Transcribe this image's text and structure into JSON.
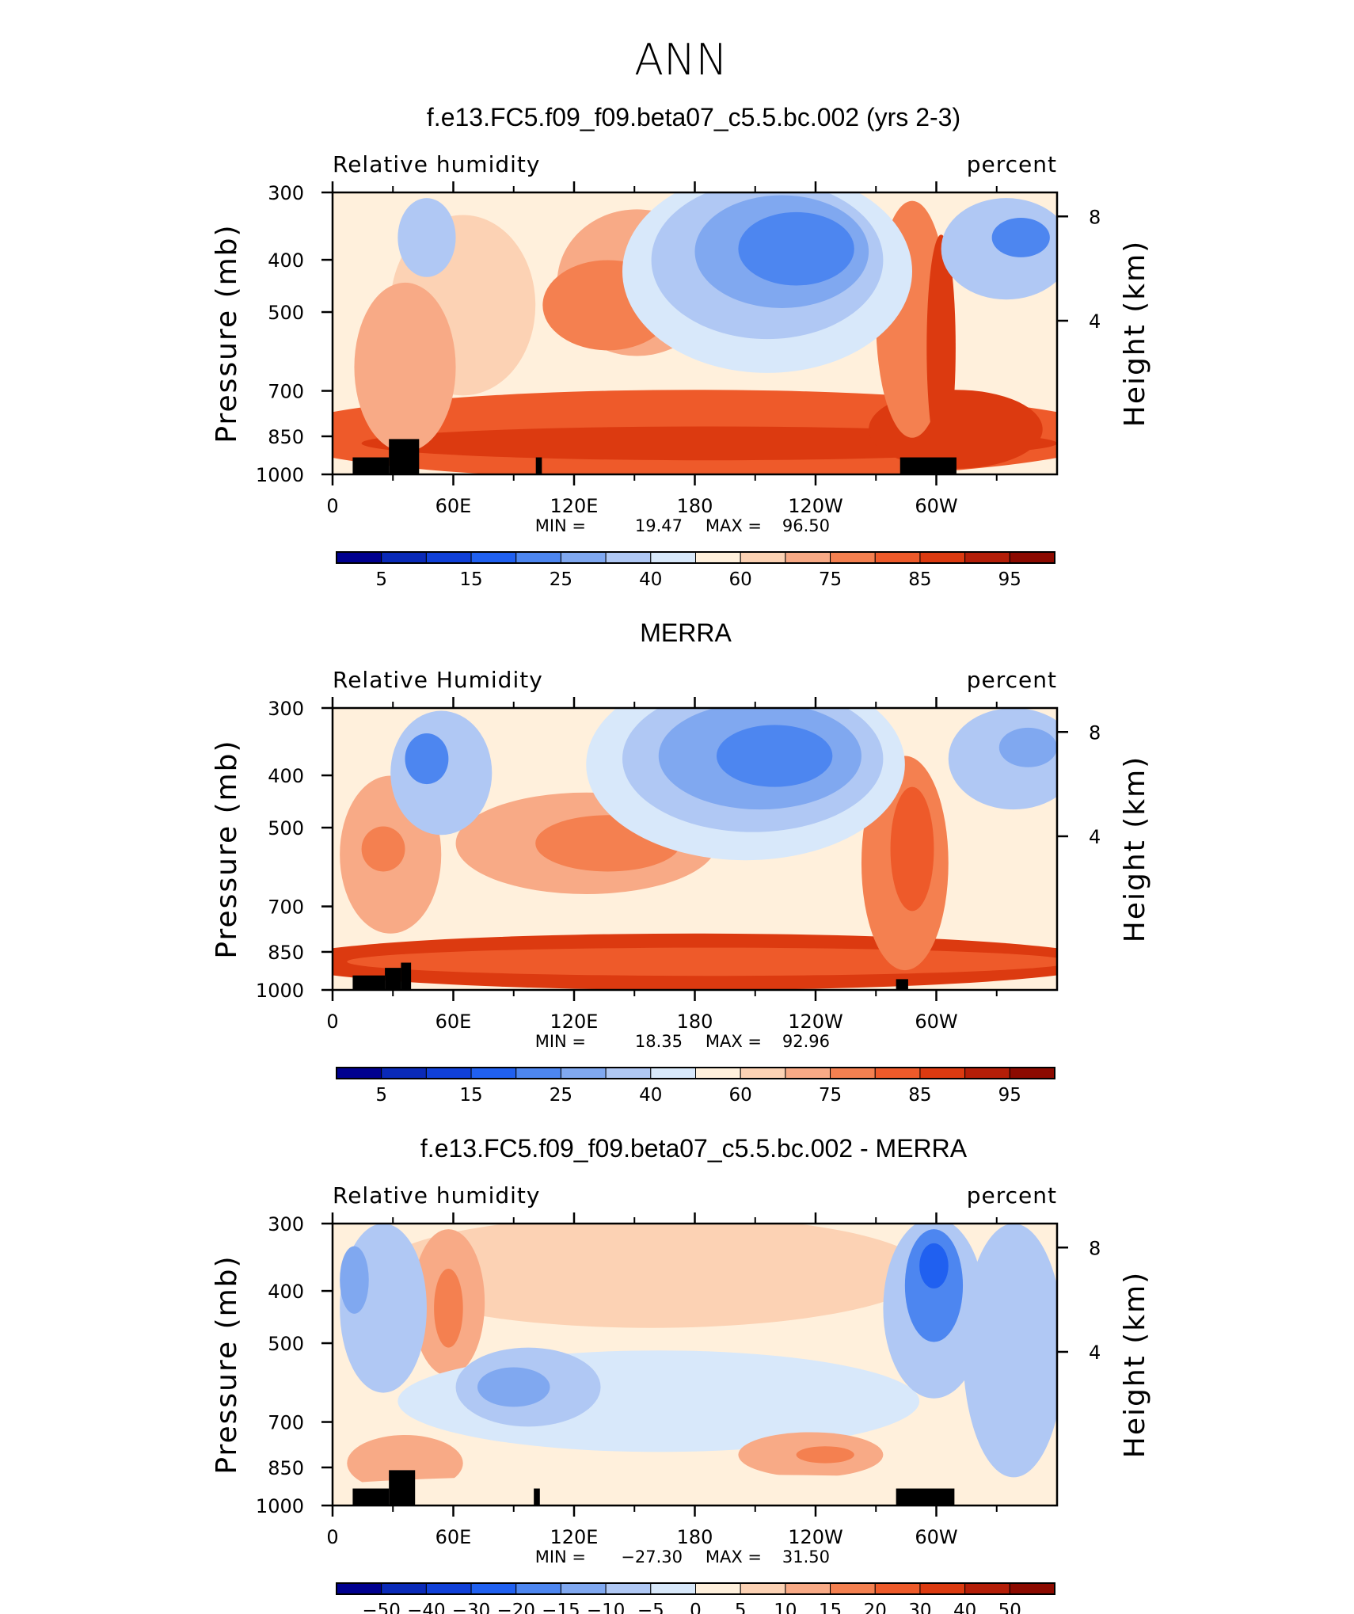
{
  "page_title": "ANN",
  "chart_data": [
    {
      "type": "heatmap",
      "title": "f.e13.FC5.f09_f09.beta07_c5.5.bc.002 (yrs 2-3)",
      "left_label": "Relative humidity",
      "right_label": "percent",
      "ylabel": "Pressure (mb)",
      "ylabel_right": "Height (km)",
      "x_ticks": [
        "0",
        "60E",
        "120E",
        "180",
        "120W",
        "60W"
      ],
      "y_ticks": [
        "300",
        "400",
        "500",
        "700",
        "850",
        "1000"
      ],
      "y_ticks_right": [
        "8",
        "4"
      ],
      "stats": {
        "min_label": "MIN =",
        "min": "19.47",
        "max_label": "MAX =",
        "max": "96.50"
      },
      "colorbar_labels": [
        "5",
        "15",
        "25",
        "40",
        "60",
        "75",
        "85",
        "95"
      ],
      "colorbar_colors": [
        "#00008f",
        "#0a2ab8",
        "#1040d8",
        "#2060f0",
        "#4d86f0",
        "#80a8f0",
        "#b0c8f4",
        "#d8e8fa",
        "#fff0dc",
        "#fcd2b4",
        "#f8aa86",
        "#f48050",
        "#ee5a2a",
        "#dc3a10",
        "#b41e08",
        "#8c0a00"
      ],
      "land_blocks": [
        {
          "lon": [
            10,
            28
          ],
          "p_top": 930
        },
        {
          "lon": [
            28,
            43
          ],
          "p_top": 860
        },
        {
          "lon": [
            35,
            41
          ],
          "p_top": 930
        },
        {
          "lon": [
            101,
            104
          ],
          "p_top": 930
        },
        {
          "lon": [
            282,
            310
          ],
          "p_top": 930
        }
      ]
    },
    {
      "type": "heatmap",
      "title": "MERRA",
      "left_label": "Relative Humidity",
      "right_label": "percent",
      "ylabel": "Pressure (mb)",
      "ylabel_right": "Height (km)",
      "x_ticks": [
        "0",
        "60E",
        "120E",
        "180",
        "120W",
        "60W"
      ],
      "y_ticks": [
        "300",
        "400",
        "500",
        "700",
        "850",
        "1000"
      ],
      "y_ticks_right": [
        "8",
        "4"
      ],
      "stats": {
        "min_label": "MIN =",
        "min": "18.35",
        "max_label": "MAX =",
        "max": "92.96"
      },
      "colorbar_labels": [
        "5",
        "15",
        "25",
        "40",
        "60",
        "75",
        "85",
        "95"
      ],
      "colorbar_colors": [
        "#00008f",
        "#0a2ab8",
        "#1040d8",
        "#2060f0",
        "#4d86f0",
        "#80a8f0",
        "#b0c8f4",
        "#d8e8fa",
        "#fff0dc",
        "#fcd2b4",
        "#f8aa86",
        "#f48050",
        "#ee5a2a",
        "#dc3a10",
        "#b41e08",
        "#8c0a00"
      ],
      "land_blocks": [
        {
          "lon": [
            10,
            26
          ],
          "p_top": 940
        },
        {
          "lon": [
            26,
            34
          ],
          "p_top": 910
        },
        {
          "lon": [
            34,
            39
          ],
          "p_top": 890
        },
        {
          "lon": [
            280,
            286
          ],
          "p_top": 955
        }
      ]
    },
    {
      "type": "heatmap",
      "title": "f.e13.FC5.f09_f09.beta07_c5.5.bc.002 - MERRA",
      "left_label": "Relative humidity",
      "right_label": "percent",
      "ylabel": "Pressure (mb)",
      "ylabel_right": "Height (km)",
      "x_ticks": [
        "0",
        "60E",
        "120E",
        "180",
        "120W",
        "60W"
      ],
      "y_ticks": [
        "300",
        "400",
        "500",
        "700",
        "850",
        "1000"
      ],
      "y_ticks_right": [
        "8",
        "4"
      ],
      "stats": {
        "min_label": "MIN =",
        "min": "−27.30",
        "max_label": "MAX =",
        "max": "31.50"
      },
      "colorbar_labels": [
        "−50",
        "−40",
        "−30",
        "−20",
        "−15",
        "−10",
        "−5",
        "0",
        "5",
        "10",
        "15",
        "20",
        "30",
        "40",
        "50"
      ],
      "colorbar_colors": [
        "#00008f",
        "#0a2ab8",
        "#1040d8",
        "#2060f0",
        "#4d86f0",
        "#80a8f0",
        "#b0c8f4",
        "#d8e8fa",
        "#fff0dc",
        "#fcd2b4",
        "#f8aa86",
        "#f48050",
        "#ee5a2a",
        "#dc3a10",
        "#b41e08",
        "#8c0a00"
      ],
      "land_blocks": [
        {
          "lon": [
            10,
            28
          ],
          "p_top": 930
        },
        {
          "lon": [
            28,
            41
          ],
          "p_top": 860
        },
        {
          "lon": [
            100,
            103
          ],
          "p_top": 930
        },
        {
          "lon": [
            280,
            309
          ],
          "p_top": 930
        }
      ]
    }
  ]
}
